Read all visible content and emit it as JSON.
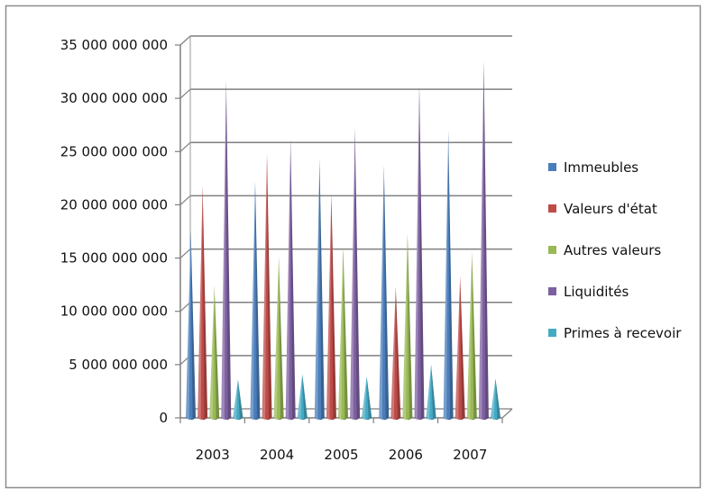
{
  "chart_data": {
    "type": "bar",
    "style": "3d-cone",
    "categories": [
      "2003",
      "2004",
      "2005",
      "2006",
      "2007"
    ],
    "series": [
      {
        "name": "Immeubles",
        "color": "#4a7ebb",
        "values": [
          17500000000,
          22200000000,
          24300000000,
          23700000000,
          26900000000
        ]
      },
      {
        "name": "Valeurs d'état",
        "color": "#be4b48",
        "values": [
          21800000000,
          24700000000,
          21000000000,
          12300000000,
          13300000000
        ]
      },
      {
        "name": "Autres valeurs",
        "color": "#98b954",
        "values": [
          12400000000,
          15100000000,
          16000000000,
          17300000000,
          15600000000
        ]
      },
      {
        "name": "Liquidités",
        "color": "#7d60a0",
        "values": [
          31700000000,
          26200000000,
          27200000000,
          31200000000,
          33500000000
        ]
      },
      {
        "name": "Primes à recevoir",
        "color": "#46aac5",
        "values": [
          3600000000,
          4100000000,
          3900000000,
          5000000000,
          3700000000
        ]
      }
    ],
    "ylim": [
      0,
      35000000000
    ],
    "ytick_labels": [
      "0",
      "5 000 000 000",
      "10 000 000 000",
      "15 000 000 000",
      "20 000 000 000",
      "25 000 000 000",
      "30 000 000 000",
      "35 000 000 000"
    ],
    "grid": true,
    "legend_position": "right",
    "title": "",
    "xlabel": "",
    "ylabel": ""
  }
}
